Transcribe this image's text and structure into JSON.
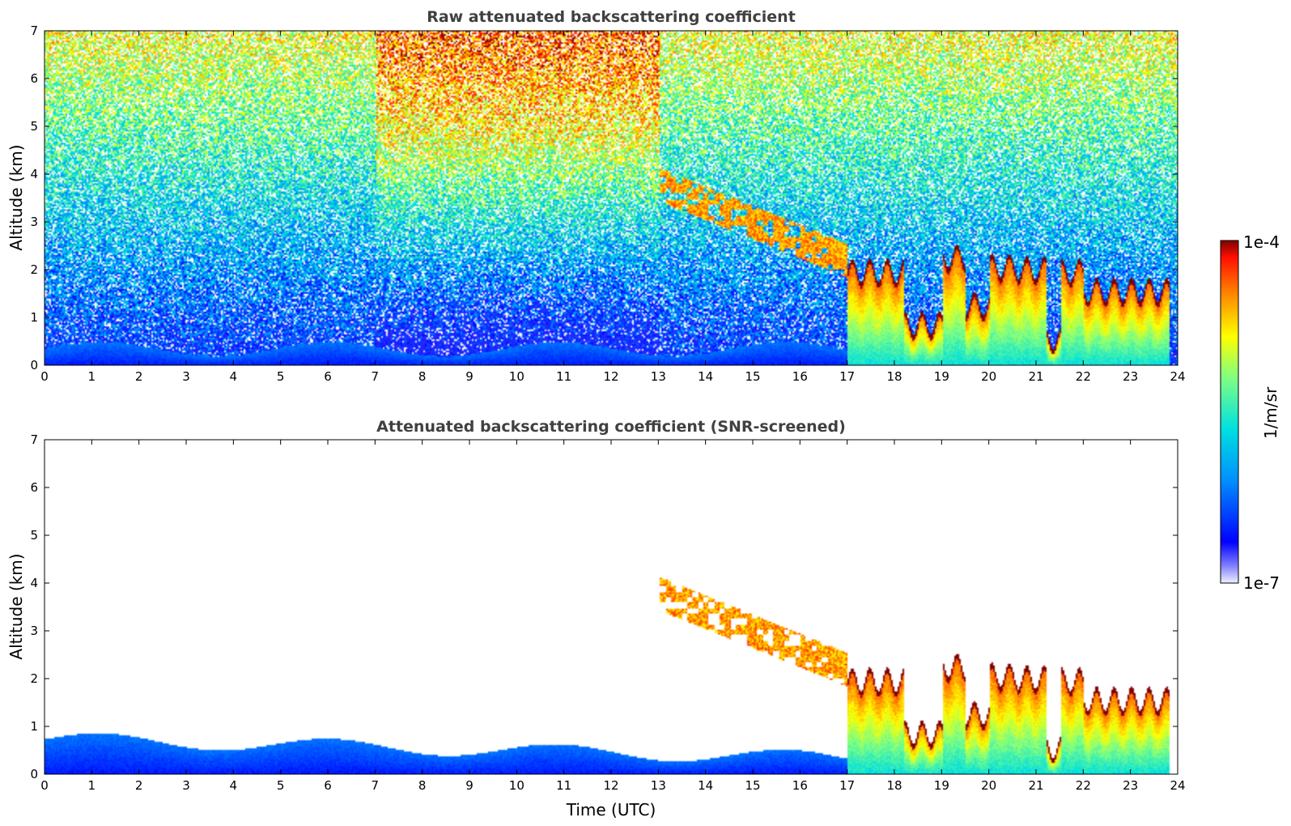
{
  "chart_data": [
    {
      "type": "heatmap",
      "title": "Raw attenuated backscattering coefficient",
      "xlabel": "",
      "ylabel": "Altitude (km)",
      "xlim": [
        0,
        24
      ],
      "ylim": [
        0,
        7
      ],
      "x_ticks": [
        "0",
        "1",
        "2",
        "3",
        "4",
        "5",
        "6",
        "7",
        "8",
        "9",
        "10",
        "11",
        "12",
        "13",
        "14",
        "15",
        "16",
        "17",
        "18",
        "19",
        "20",
        "21",
        "22",
        "23",
        "24"
      ],
      "y_ticks": [
        "0",
        "1",
        "2",
        "3",
        "4",
        "5",
        "6",
        "7"
      ],
      "features": [
        {
          "kind": "boundary_layer",
          "t_start": 0,
          "t_end": 17,
          "top_km": 0.35
        },
        {
          "kind": "cloud_layer_descending",
          "t_start": 13,
          "t_end": 17,
          "alt_start_km": 3.8,
          "alt_end_km": 2.2
        },
        {
          "kind": "low_cloud_columns",
          "t_start": 17,
          "t_end": 23.8,
          "top_km": 2.1
        }
      ]
    },
    {
      "type": "heatmap",
      "title": "Attenuated backscattering coefficient (SNR-screened)",
      "xlabel": "Time (UTC)",
      "ylabel": "Altitude (km)",
      "xlim": [
        0,
        24
      ],
      "ylim": [
        0,
        7
      ],
      "x_ticks": [
        "0",
        "1",
        "2",
        "3",
        "4",
        "5",
        "6",
        "7",
        "8",
        "9",
        "10",
        "11",
        "12",
        "13",
        "14",
        "15",
        "16",
        "17",
        "18",
        "19",
        "20",
        "21",
        "22",
        "23",
        "24"
      ],
      "y_ticks": [
        "0",
        "1",
        "2",
        "3",
        "4",
        "5",
        "6",
        "7"
      ]
    }
  ],
  "colorbar": {
    "max_label": "1e-4",
    "min_label": "1e-7",
    "unit_label": "1/m/sr",
    "range": [
      1e-07,
      0.0001
    ],
    "scale": "log",
    "colormap": "jet"
  }
}
